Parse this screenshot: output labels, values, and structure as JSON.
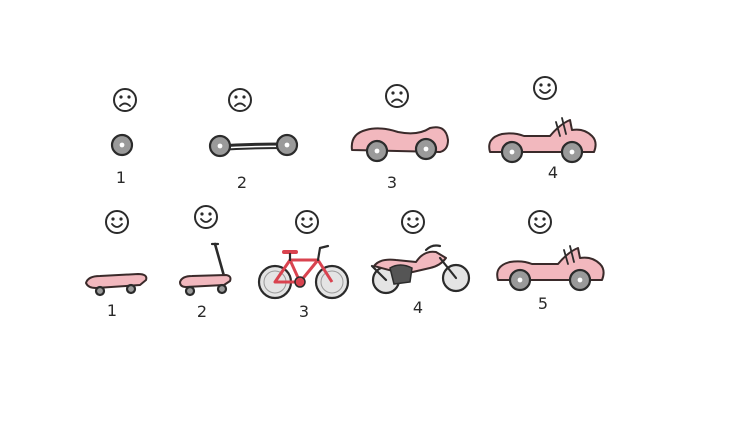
{
  "rows": [
    {
      "name": "top",
      "steps": [
        {
          "label": "1",
          "face": "sad",
          "vehicle": "wheel"
        },
        {
          "label": "2",
          "face": "sad",
          "vehicle": "axle"
        },
        {
          "label": "3",
          "face": "sad",
          "vehicle": "car-body"
        },
        {
          "label": "4",
          "face": "happy",
          "vehicle": "car"
        }
      ]
    },
    {
      "name": "bottom",
      "steps": [
        {
          "label": "1",
          "face": "happy",
          "vehicle": "skateboard"
        },
        {
          "label": "2",
          "face": "happy",
          "vehicle": "scooter"
        },
        {
          "label": "3",
          "face": "happy",
          "vehicle": "bicycle"
        },
        {
          "label": "4",
          "face": "happy",
          "vehicle": "motorcycle"
        },
        {
          "label": "5",
          "face": "happy",
          "vehicle": "car"
        }
      ]
    }
  ],
  "colors": {
    "body": "#f2b8be",
    "wheel": "#9a9a9a",
    "ink": "#2b2b2b",
    "frame": "#d9434f"
  }
}
